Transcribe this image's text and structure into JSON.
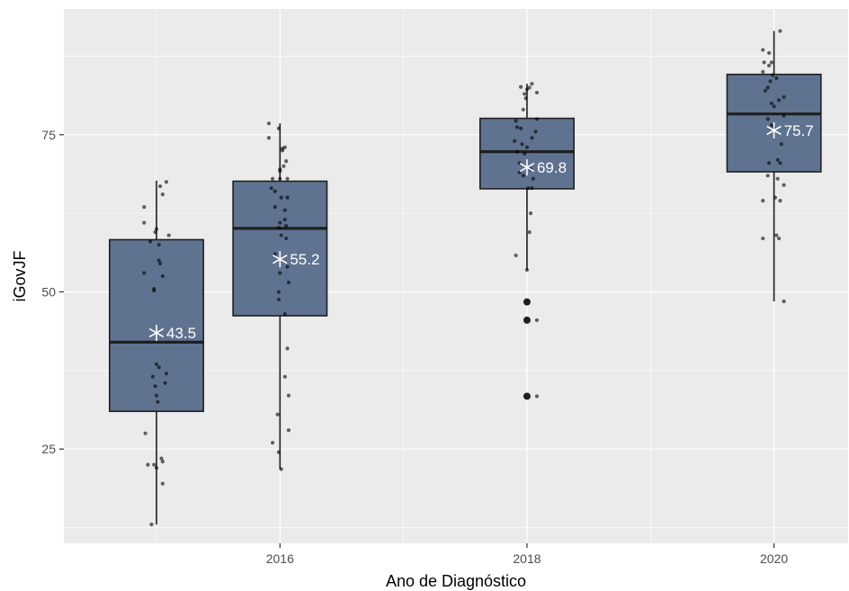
{
  "chart_data": {
    "type": "boxplot",
    "title": "",
    "xlabel": "Ano de Diagnóstico",
    "ylabel": "iGovJF",
    "xlim": [
      2014.25,
      2020.6
    ],
    "ylim": [
      10,
      95
    ],
    "x_ticks": [
      2016,
      2018,
      2020
    ],
    "x_minor_ticks": [
      2015,
      2017,
      2019
    ],
    "y_ticks": [
      25,
      50,
      75
    ],
    "y_minor_ticks": [
      12.5,
      37.5,
      62.5,
      87.5
    ],
    "grid": true,
    "legend": "none",
    "colors": {
      "panel_bg": "#ebebeb",
      "grid_major": "#ffffff",
      "box_fill": "#5f7390",
      "box_outline": "#1f1f1f",
      "point": "#000000",
      "mean_marker": "#ffffff"
    },
    "boxes": [
      {
        "year": 2015,
        "q1": 31,
        "median": 42,
        "q3": 58.3,
        "whisker_low": 13,
        "whisker_high": 67.7,
        "mean": 43.5,
        "mean_label": "43.5",
        "outliers": [],
        "jitter_points": [
          [
            2015.08,
            67.5
          ],
          [
            2015.03,
            66.8
          ],
          [
            2015.05,
            65.5
          ],
          [
            2014.9,
            63.5
          ],
          [
            2014.9,
            61.0
          ],
          [
            2015.0,
            60.0
          ],
          [
            2014.99,
            59.5
          ],
          [
            2015.1,
            59.0
          ],
          [
            2014.95,
            58.0
          ],
          [
            2015.02,
            57.5
          ],
          [
            2015.02,
            55.0
          ],
          [
            2015.03,
            54.5
          ],
          [
            2014.9,
            53.0
          ],
          [
            2015.05,
            52.5
          ],
          [
            2014.98,
            50.5
          ],
          [
            2014.98,
            50.2
          ],
          [
            2015.0,
            38.5
          ],
          [
            2015.02,
            38.0
          ],
          [
            2015.08,
            37.0
          ],
          [
            2014.97,
            36.5
          ],
          [
            2015.07,
            35.5
          ],
          [
            2014.99,
            35.0
          ],
          [
            2015.0,
            33.5
          ],
          [
            2015.01,
            32.5
          ],
          [
            2014.91,
            27.5
          ],
          [
            2015.04,
            23.5
          ],
          [
            2015.05,
            23.0
          ],
          [
            2014.98,
            22.5
          ],
          [
            2014.93,
            22.5
          ],
          [
            2015.0,
            22.0
          ],
          [
            2015.05,
            19.5
          ],
          [
            2014.96,
            13.0
          ]
        ]
      },
      {
        "year": 2016,
        "q1": 46.2,
        "median": 60.1,
        "q3": 67.6,
        "whisker_low": 21.8,
        "whisker_high": 76.8,
        "mean": 55.2,
        "mean_label": "55.2",
        "outliers": [],
        "jitter_points": [
          [
            2015.91,
            76.8
          ],
          [
            2015.99,
            76.0
          ],
          [
            2015.91,
            74.5
          ],
          [
            2016.04,
            73.0
          ],
          [
            2016.02,
            72.8
          ],
          [
            2016.02,
            72.5
          ],
          [
            2016.05,
            70.8
          ],
          [
            2016.03,
            70.0
          ],
          [
            2016.0,
            69.5
          ],
          [
            2016.0,
            69.2
          ],
          [
            2016.06,
            68.0
          ],
          [
            2015.94,
            68.0
          ],
          [
            2016.0,
            68.0
          ],
          [
            2015.93,
            66.5
          ],
          [
            2015.96,
            66.0
          ],
          [
            2016.01,
            65.0
          ],
          [
            2016.06,
            65.0
          ],
          [
            2015.96,
            63.5
          ],
          [
            2016.04,
            63.0
          ],
          [
            2016.04,
            61.5
          ],
          [
            2016.0,
            61.0
          ],
          [
            2016.05,
            60.5
          ],
          [
            2015.99,
            60.2
          ],
          [
            2016.01,
            59.0
          ],
          [
            2016.05,
            58.5
          ],
          [
            2015.96,
            56.0
          ],
          [
            2016.06,
            54.0
          ],
          [
            2016.0,
            53.0
          ],
          [
            2016.07,
            51.5
          ],
          [
            2015.99,
            50.0
          ],
          [
            2015.99,
            48.8
          ],
          [
            2016.04,
            46.5
          ],
          [
            2016.06,
            41.0
          ],
          [
            2016.04,
            36.5
          ],
          [
            2016.07,
            33.5
          ],
          [
            2015.98,
            30.5
          ],
          [
            2016.07,
            28.0
          ],
          [
            2015.94,
            26.0
          ],
          [
            2015.99,
            24.5
          ],
          [
            2016.01,
            21.8
          ]
        ]
      },
      {
        "year": 2018,
        "q1": 66.4,
        "median": 72.3,
        "q3": 77.6,
        "whisker_low": 53.5,
        "whisker_high": 83.1,
        "mean": 69.8,
        "mean_label": "69.8",
        "outliers": [
          48.4,
          45.5,
          33.4
        ],
        "jitter_points": [
          [
            2018.04,
            83.1
          ],
          [
            2017.95,
            82.6
          ],
          [
            2018.02,
            82.5
          ],
          [
            2018.0,
            82.2
          ],
          [
            2018.08,
            81.7
          ],
          [
            2017.98,
            81.5
          ],
          [
            2017.99,
            80.8
          ],
          [
            2017.97,
            79.0
          ],
          [
            2018.08,
            77.5
          ],
          [
            2017.91,
            77.2
          ],
          [
            2017.92,
            76.2
          ],
          [
            2017.95,
            76.0
          ],
          [
            2018.07,
            75.5
          ],
          [
            2018.04,
            74.5
          ],
          [
            2017.9,
            74.0
          ],
          [
            2017.96,
            73.5
          ],
          [
            2018.0,
            73.0
          ],
          [
            2017.92,
            72.3
          ],
          [
            2017.98,
            72.0
          ],
          [
            2017.94,
            70.5
          ],
          [
            2018.03,
            69.5
          ],
          [
            2017.94,
            69.0
          ],
          [
            2017.97,
            68.5
          ],
          [
            2018.05,
            68.0
          ],
          [
            2018.04,
            66.5
          ],
          [
            2018.01,
            66.5
          ],
          [
            2018.03,
            62.5
          ],
          [
            2018.02,
            59.5
          ],
          [
            2017.91,
            55.8
          ],
          [
            2018.0,
            53.5
          ],
          [
            2018.08,
            45.5
          ],
          [
            2018.08,
            33.4
          ]
        ]
      },
      {
        "year": 2020,
        "q1": 69.1,
        "median": 78.3,
        "q3": 84.6,
        "whisker_low": 48.5,
        "whisker_high": 91.5,
        "mean": 75.7,
        "mean_label": "75.7",
        "outliers": [],
        "jitter_points": [
          [
            2020.05,
            91.5
          ],
          [
            2019.91,
            88.5
          ],
          [
            2019.96,
            88.0
          ],
          [
            2019.92,
            86.5
          ],
          [
            2019.98,
            86.5
          ],
          [
            2019.96,
            86.0
          ],
          [
            2019.91,
            85.0
          ],
          [
            2019.99,
            84.5
          ],
          [
            2020.02,
            84.0
          ],
          [
            2019.97,
            83.5
          ],
          [
            2019.95,
            82.5
          ],
          [
            2019.93,
            82.0
          ],
          [
            2020.08,
            81.0
          ],
          [
            2020.04,
            80.5
          ],
          [
            2019.98,
            80.0
          ],
          [
            2020.0,
            79.5
          ],
          [
            2020.08,
            78.0
          ],
          [
            2019.95,
            77.5
          ],
          [
            2019.98,
            76.5
          ],
          [
            2020.0,
            76.0
          ],
          [
            2020.06,
            73.5
          ],
          [
            2020.03,
            71.0
          ],
          [
            2019.96,
            70.5
          ],
          [
            2020.05,
            70.5
          ],
          [
            2019.95,
            68.5
          ],
          [
            2020.03,
            68.0
          ],
          [
            2020.08,
            67.0
          ],
          [
            2020.01,
            65.0
          ],
          [
            2019.91,
            64.5
          ],
          [
            2020.05,
            64.5
          ],
          [
            2020.02,
            59.0
          ],
          [
            2019.91,
            58.5
          ],
          [
            2020.04,
            58.5
          ],
          [
            2020.08,
            48.5
          ]
        ]
      }
    ]
  }
}
